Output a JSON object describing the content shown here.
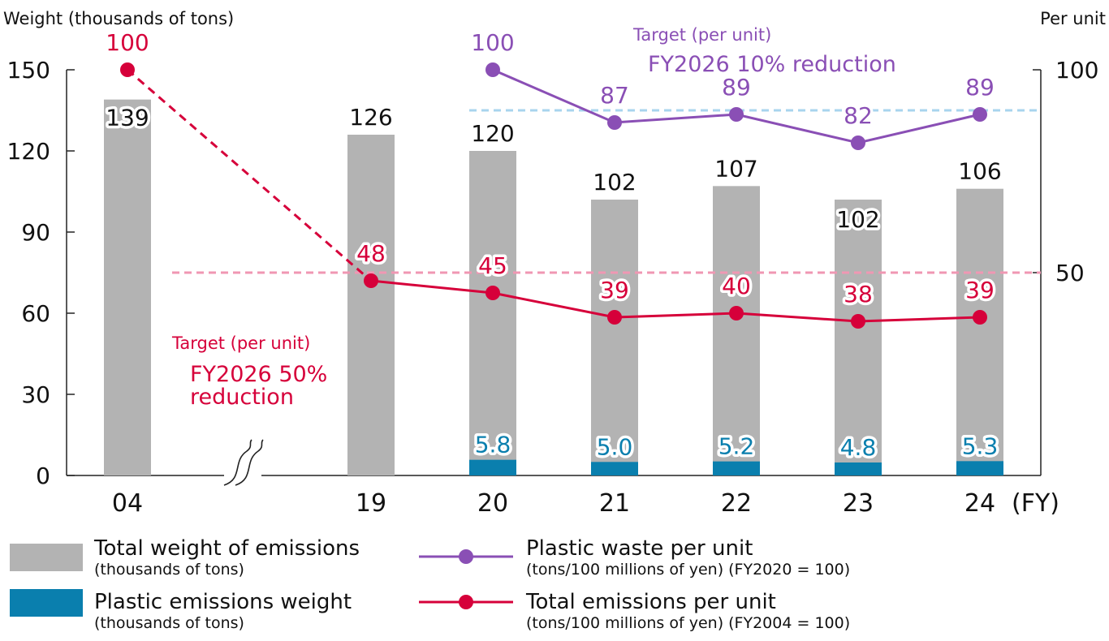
{
  "chart_data": {
    "type": "bar",
    "categories": [
      "04",
      "19",
      "20",
      "21",
      "22",
      "23",
      "24"
    ],
    "x_unit": "(FY)",
    "y_left_title": "Weight (thousands of tons)",
    "y_right_title": "Per unit",
    "y_left_ticks": [
      "0",
      "30",
      "60",
      "90",
      "120",
      "150"
    ],
    "y_right_ticks": [
      "50",
      "100"
    ],
    "y_left_range": [
      0,
      150
    ],
    "y_right_range": [
      0,
      100
    ],
    "axis_break_after": "04",
    "series": [
      {
        "name": "Total weight of emissions",
        "kind": "bar",
        "axis": "left",
        "color": "#b3b3b3",
        "values": [
          139,
          126,
          120,
          102,
          107,
          102,
          106
        ],
        "labels": [
          "139",
          "126",
          "120",
          "102",
          "107",
          "102",
          "106"
        ]
      },
      {
        "name": "Plastic emissions weight",
        "kind": "bar",
        "axis": "left",
        "color": "#0a7fae",
        "values": [
          null,
          null,
          5.8,
          5.0,
          5.2,
          4.8,
          5.3
        ],
        "labels": [
          "",
          "",
          "5.8",
          "5.0",
          "5.2",
          "4.8",
          "5.3"
        ]
      },
      {
        "name": "Plastic waste per unit",
        "kind": "line",
        "axis": "right",
        "color": "#8a4fb5",
        "values": [
          null,
          null,
          100,
          87,
          89,
          82,
          89
        ],
        "labels": [
          "",
          "",
          "100",
          "87",
          "89",
          "82",
          "89"
        ]
      },
      {
        "name": "Total emissions per unit",
        "kind": "line",
        "axis": "right",
        "color": "#d6003a",
        "values": [
          100,
          48,
          45,
          39,
          40,
          38,
          39
        ],
        "labels": [
          "100",
          "48",
          "45",
          "39",
          "40",
          "38",
          "39"
        ]
      }
    ],
    "targets": [
      {
        "series": "Plastic waste per unit",
        "value": 90,
        "color": "#a8d4ee",
        "label_line1": "Target (per unit)",
        "label_line2": "FY2026 10% reduction"
      },
      {
        "series": "Total emissions per unit",
        "value": 50,
        "color": "#f097b3",
        "label_line1": "Target (per unit)",
        "label_line2": "FY2026 50%",
        "label_line3": "reduction"
      }
    ],
    "legend": [
      {
        "marker": "bar",
        "color": "#b3b3b3",
        "label": "Total weight of emissions",
        "sublabel": "(thousands of tons)"
      },
      {
        "marker": "bar",
        "color": "#0a7fae",
        "label": "Plastic emissions weight",
        "sublabel": "(thousands of tons)"
      },
      {
        "marker": "line",
        "color": "#8a4fb5",
        "label": "Plastic waste per unit",
        "sublabel": "(tons/100 millions of yen) (FY2020 = 100)"
      },
      {
        "marker": "line",
        "color": "#d6003a",
        "label": "Total emissions per unit",
        "sublabel": "(tons/100 millions of yen) (FY2004 = 100)"
      }
    ],
    "legend_position": "bottom",
    "grid": false
  }
}
